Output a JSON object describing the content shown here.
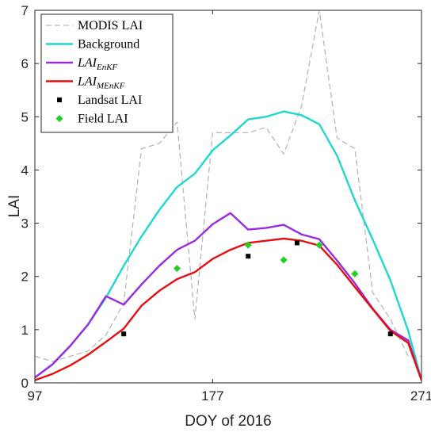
{
  "chart_data": {
    "type": "line",
    "xlabel": "DOY of 2016",
    "ylabel": "LAI",
    "xlim": [
      97,
      271
    ],
    "ylim": [
      0,
      7
    ],
    "x_ticks": [
      "97",
      "177",
      "271"
    ],
    "x_tick_values": [
      97,
      177,
      271
    ],
    "y_ticks": [
      "0",
      "1",
      "2",
      "3",
      "4",
      "5",
      "6",
      "7"
    ],
    "grid": false,
    "legend_position": "top-left",
    "series": [
      {
        "key": "modis",
        "name": "MODIS LAI",
        "style": "dashed",
        "color": "#b8b8b8",
        "x": [
          97,
          105,
          113,
          121,
          129,
          137,
          145,
          153,
          161,
          169,
          177,
          185,
          193,
          201,
          209,
          217,
          225,
          233,
          241,
          249,
          257,
          265,
          271
        ],
        "y": [
          0.5,
          0.4,
          0.5,
          0.6,
          0.9,
          1.5,
          4.4,
          4.5,
          4.9,
          1.2,
          4.7,
          4.7,
          4.7,
          4.8,
          4.3,
          5.2,
          7.0,
          4.6,
          4.4,
          1.7,
          1.2,
          0.5,
          0.5
        ]
      },
      {
        "key": "background",
        "name": "Background",
        "style": "solid",
        "color": "#1fd8d0",
        "x": [
          97,
          105,
          113,
          121,
          129,
          137,
          145,
          153,
          161,
          169,
          177,
          185,
          193,
          201,
          209,
          217,
          225,
          233,
          241,
          249,
          257,
          265,
          271
        ],
        "y": [
          0.1,
          0.35,
          0.7,
          1.1,
          1.6,
          2.2,
          2.75,
          3.25,
          3.68,
          3.93,
          4.37,
          4.65,
          4.95,
          5.0,
          5.1,
          5.03,
          4.86,
          4.27,
          3.43,
          2.7,
          1.93,
          0.98,
          0.05
        ]
      },
      {
        "key": "enkf",
        "name": "LAI",
        "name_sub": "EnKF",
        "style": "solid",
        "color": "#9a2be0",
        "x": [
          97,
          105,
          113,
          121,
          129,
          137,
          145,
          153,
          161,
          169,
          177,
          185,
          193,
          201,
          209,
          217,
          225,
          233,
          241,
          249,
          257,
          265,
          271
        ],
        "y": [
          0.1,
          0.35,
          0.7,
          1.1,
          1.63,
          1.47,
          1.85,
          2.2,
          2.5,
          2.67,
          2.98,
          3.19,
          2.88,
          2.91,
          2.97,
          2.79,
          2.7,
          2.3,
          1.87,
          1.4,
          1.0,
          0.8,
          0.05
        ]
      },
      {
        "key": "menkf",
        "name": "LAI",
        "name_sub": "MEnKF",
        "style": "solid",
        "color": "#e60f0f",
        "x": [
          97,
          105,
          113,
          121,
          129,
          137,
          145,
          153,
          161,
          169,
          177,
          185,
          193,
          201,
          209,
          217,
          225,
          233,
          241,
          249,
          257,
          265,
          271
        ],
        "y": [
          0.05,
          0.17,
          0.33,
          0.53,
          0.77,
          1.02,
          1.45,
          1.73,
          1.95,
          2.08,
          2.33,
          2.5,
          2.63,
          2.67,
          2.71,
          2.67,
          2.58,
          2.22,
          1.8,
          1.39,
          0.98,
          0.75,
          0.05
        ]
      }
    ],
    "points": [
      {
        "key": "landsat",
        "name": "Landsat LAI",
        "marker": "square",
        "color": "#000000",
        "x": [
          137,
          193,
          215,
          257
        ],
        "y": [
          0.92,
          2.38,
          2.63,
          0.92
        ]
      },
      {
        "key": "field",
        "name": "Field LAI",
        "marker": "diamond",
        "color": "#1ed21e",
        "x": [
          161,
          193,
          209,
          225,
          241
        ],
        "y": [
          2.15,
          2.59,
          2.31,
          2.59,
          2.05
        ]
      }
    ]
  }
}
